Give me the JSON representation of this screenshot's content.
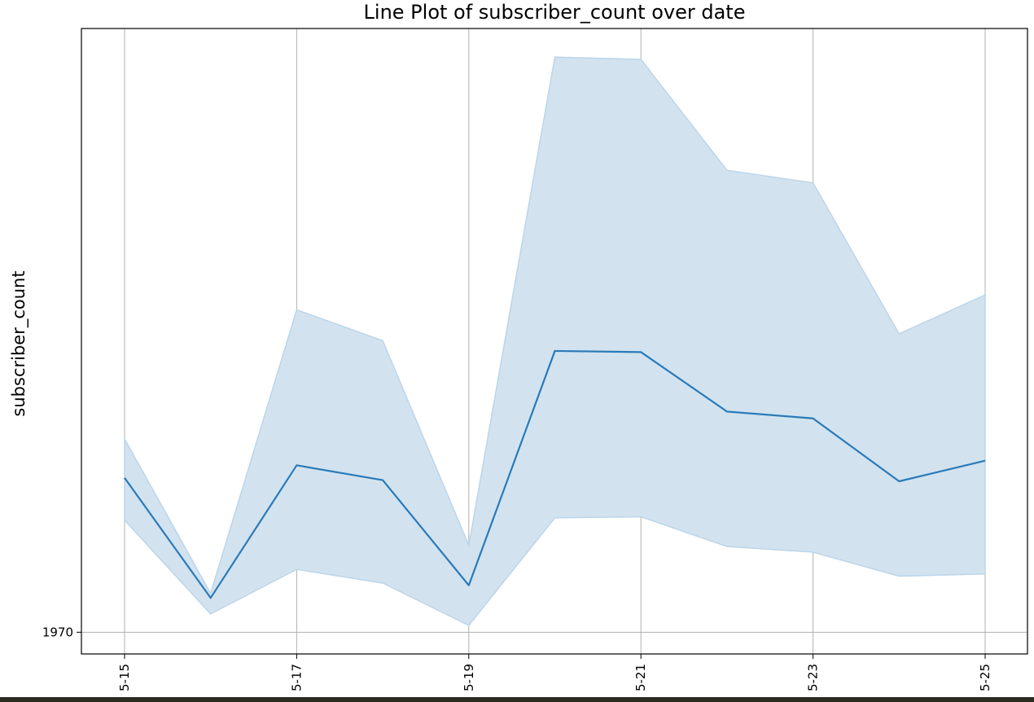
{
  "chart_data": {
    "type": "line",
    "title": "Line Plot of subscriber_count over date",
    "xlabel": "",
    "ylabel": "subscriber_count",
    "x": [
      "5-15",
      "5-16",
      "5-17",
      "5-18",
      "5-19",
      "5-20",
      "5-21",
      "5-22",
      "5-23",
      "5-24",
      "5-25"
    ],
    "x_ticks": [
      "5-15",
      "5-17",
      "5-19",
      "5-21",
      "5-23",
      "5-25"
    ],
    "y_ticks": [
      {
        "value": 1970,
        "label": "1970"
      }
    ],
    "series": [
      {
        "values": [
          2105,
          2000,
          2116,
          2103,
          2011,
          2216,
          2215,
          2163,
          2157,
          2102,
          2120
        ],
        "ci_lower": [
          2068,
          1986,
          2025,
          2013,
          1976,
          2070,
          2071,
          2045,
          2040,
          2019,
          2021
        ],
        "ci_upper": [
          2139,
          2004,
          2252,
          2225,
          2046,
          2473,
          2471,
          2374,
          2363,
          2231,
          2265
        ]
      }
    ],
    "ylim": [
      1951,
      2498
    ],
    "grid": true,
    "line_color": "#2a7ab9",
    "band_color": "#d2e3ef"
  }
}
